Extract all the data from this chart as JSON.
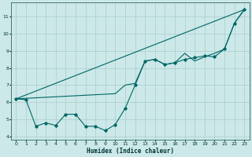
{
  "xlabel": "Humidex (Indice chaleur)",
  "background_color": "#cce8e8",
  "grid_color": "#aacccc",
  "line_color": "#006666",
  "xlim": [
    -0.5,
    23.5
  ],
  "ylim": [
    3.8,
    11.8
  ],
  "xticks": [
    0,
    1,
    2,
    3,
    4,
    5,
    6,
    7,
    8,
    9,
    10,
    11,
    12,
    13,
    14,
    15,
    16,
    17,
    18,
    19,
    20,
    21,
    22,
    23
  ],
  "yticks": [
    4,
    5,
    6,
    7,
    8,
    9,
    10,
    11
  ],
  "line1_x": [
    0,
    23
  ],
  "line1_y": [
    6.2,
    11.4
  ],
  "line2_x": [
    0,
    1,
    2,
    3,
    4,
    5,
    5,
    6,
    7,
    8,
    8,
    9,
    10,
    10,
    11,
    12,
    13,
    14,
    15,
    16,
    17,
    18,
    19,
    20,
    21,
    22,
    23
  ],
  "line2_y": [
    6.2,
    6.15,
    4.6,
    4.8,
    4.65,
    5.3,
    5.3,
    5.3,
    4.6,
    4.6,
    4.6,
    4.35,
    4.7,
    4.7,
    5.65,
    7.0,
    8.4,
    8.5,
    8.2,
    8.3,
    8.5,
    8.6,
    8.7,
    8.65,
    9.1,
    10.6,
    11.4
  ],
  "line3_x": [
    0,
    10,
    11,
    12,
    13,
    14,
    15,
    16,
    17,
    18,
    19,
    20,
    21,
    22,
    23
  ],
  "line3_y": [
    6.2,
    6.5,
    7.0,
    7.1,
    8.4,
    8.5,
    8.2,
    8.3,
    8.85,
    8.4,
    8.65,
    8.85,
    9.1,
    10.6,
    11.4
  ],
  "marker_x": [
    0,
    1,
    2,
    3,
    4,
    5,
    6,
    7,
    8,
    9,
    10,
    11,
    12,
    13,
    14,
    15,
    16,
    17,
    18,
    19,
    20,
    21,
    22,
    23
  ],
  "marker_y": [
    6.2,
    6.15,
    4.6,
    4.8,
    4.65,
    5.3,
    5.3,
    4.6,
    4.6,
    4.35,
    4.7,
    5.65,
    7.0,
    8.4,
    8.5,
    8.2,
    8.3,
    8.5,
    8.6,
    8.7,
    8.65,
    9.1,
    10.6,
    11.4
  ]
}
